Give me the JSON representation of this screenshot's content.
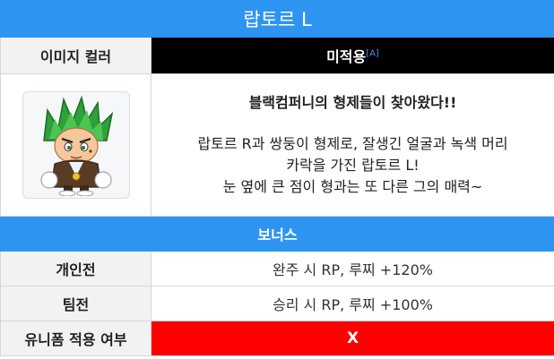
{
  "title": "랍토르 L",
  "image_color": {
    "label": "이미지 컬러",
    "value": "미적용",
    "footnote": "[A]"
  },
  "character": {
    "image_icon": "character-portrait",
    "headline": "블랙컴퍼니의 형제들이 찾아왔다!!",
    "description_lines": [
      "랍토르 R과 쌍둥이 형제로, 잘생긴 얼굴과 녹색 머리",
      "카락을 가진 랍토르 L!",
      "눈 옆에 큰 점이 형과는 또 다른 그의 매력~"
    ]
  },
  "bonus": {
    "header": "보너스",
    "rows": [
      {
        "label": "개인전",
        "value": "완주 시 RP, 루찌 +120%"
      },
      {
        "label": "팀전",
        "value": "승리 시 RP, 루찌 +100%"
      }
    ]
  },
  "uniform": {
    "label": "유니폼 적용 여부",
    "value": "X"
  },
  "colors": {
    "accent": "#2e94f2",
    "black_cell": "#000000",
    "red_cell": "#ff0000"
  }
}
